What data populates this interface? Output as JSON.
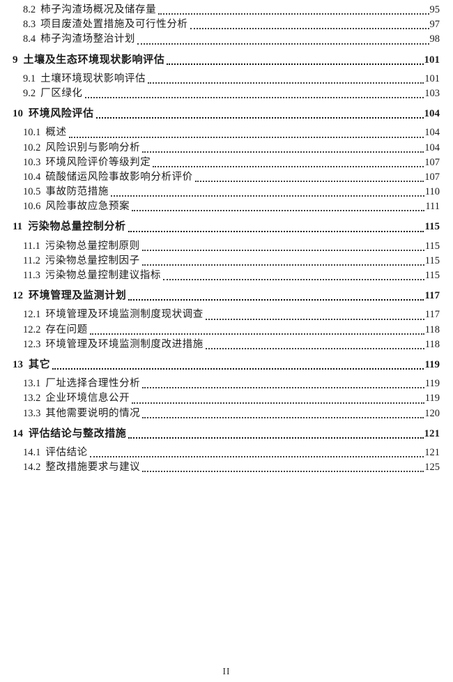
{
  "page": {
    "footer_page_number": "II"
  },
  "toc": {
    "rows": [
      {
        "level": 2,
        "num": "8.2",
        "title": "柿子沟渣场概况及储存量",
        "page": "95"
      },
      {
        "level": 2,
        "num": "8.3",
        "title": "项目废渣处置措施及可行性分析",
        "page": "97"
      },
      {
        "level": 2,
        "num": "8.4",
        "title": "柿子沟渣场整治计划",
        "page": "98"
      },
      {
        "level": 1,
        "num": "9",
        "title": "土壤及生态环境现状影响评估",
        "page": "101"
      },
      {
        "level": 2,
        "num": "9.1",
        "title": "土壤环境现状影响评估",
        "page": "101"
      },
      {
        "level": 2,
        "num": "9.2",
        "title": "厂区绿化",
        "page": "103"
      },
      {
        "level": 1,
        "num": "10",
        "title": "环境风险评估",
        "page": "104"
      },
      {
        "level": 2,
        "num": "10.1",
        "title": "概述",
        "page": "104"
      },
      {
        "level": 2,
        "num": "10.2",
        "title": "风险识别与影响分析",
        "page": "104"
      },
      {
        "level": 2,
        "num": "10.3",
        "title": "环境风险评价等级判定",
        "page": "107"
      },
      {
        "level": 2,
        "num": "10.4",
        "title": "硫酸储运风险事故影响分析评价",
        "page": "107"
      },
      {
        "level": 2,
        "num": "10.5",
        "title": "事故防范措施",
        "page": "110"
      },
      {
        "level": 2,
        "num": "10.6",
        "title": "风险事故应急预案",
        "page": "111"
      },
      {
        "level": 1,
        "num": "11",
        "title": "污染物总量控制分析",
        "page": "115"
      },
      {
        "level": 2,
        "num": "11.1",
        "title": "污染物总量控制原则",
        "page": "115"
      },
      {
        "level": 2,
        "num": "11.2",
        "title": "污染物总量控制因子",
        "page": "115"
      },
      {
        "level": 2,
        "num": "11.3",
        "title": "污染物总量控制建议指标",
        "page": "115"
      },
      {
        "level": 1,
        "num": "12",
        "title": "环境管理及监测计划",
        "page": "117"
      },
      {
        "level": 2,
        "num": "12.1",
        "title": "环境管理及环境监测制度现状调查",
        "page": "117"
      },
      {
        "level": 2,
        "num": "12.2",
        "title": "存在问题",
        "page": "118"
      },
      {
        "level": 2,
        "num": "12.3",
        "title": "环境管理及环境监测制度改进措施",
        "page": "118"
      },
      {
        "level": 1,
        "num": "13",
        "title": "其它",
        "page": "119"
      },
      {
        "level": 2,
        "num": "13.1",
        "title": "厂址选择合理性分析",
        "page": "119"
      },
      {
        "level": 2,
        "num": "13.2",
        "title": "企业环境信息公开",
        "page": "119"
      },
      {
        "level": 2,
        "num": "13.3",
        "title": "其他需要说明的情况",
        "page": "120"
      },
      {
        "level": 1,
        "num": "14",
        "title": "评估结论与整改措施",
        "page": "121"
      },
      {
        "level": 2,
        "num": "14.1",
        "title": "评估结论",
        "page": "121"
      },
      {
        "level": 2,
        "num": "14.2",
        "title": "整改措施要求与建议",
        "page": "125"
      }
    ]
  }
}
